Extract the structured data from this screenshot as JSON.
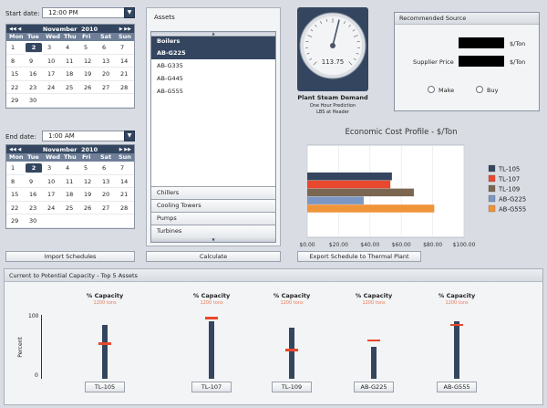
{
  "start": {
    "label": "Start date:",
    "time": "12:00 PM",
    "month": "November",
    "year": "2010",
    "days_header": [
      "Mon",
      "Tue",
      "Wed",
      "Thu",
      "Fri",
      "Sat",
      "Sun"
    ],
    "weeks": [
      [
        "1",
        "2",
        "3",
        "4",
        "5",
        "6",
        "7"
      ],
      [
        "8",
        "9",
        "10",
        "11",
        "12",
        "13",
        "14"
      ],
      [
        "15",
        "16",
        "17",
        "18",
        "19",
        "20",
        "21"
      ],
      [
        "22",
        "23",
        "24",
        "25",
        "26",
        "27",
        "28"
      ],
      [
        "29",
        "30",
        "",
        "",
        "",
        "",
        ""
      ]
    ],
    "selected": "2"
  },
  "end": {
    "label": "End date:",
    "time": "1:00 AM",
    "month": "November",
    "year": "2010",
    "days_header": [
      "Mon",
      "Tue",
      "Wed",
      "Thu",
      "Fri",
      "Sat",
      "Sun"
    ],
    "weeks": [
      [
        "1",
        "2",
        "3",
        "4",
        "5",
        "6",
        "7"
      ],
      [
        "8",
        "9",
        "10",
        "11",
        "12",
        "13",
        "14"
      ],
      [
        "15",
        "16",
        "17",
        "18",
        "19",
        "20",
        "21"
      ],
      [
        "22",
        "23",
        "24",
        "25",
        "26",
        "27",
        "28"
      ],
      [
        "29",
        "30",
        "",
        "",
        "",
        "",
        ""
      ]
    ],
    "selected": "2"
  },
  "import_button": "Import Schedules",
  "assets": {
    "title": "Assets",
    "group": "Boilers",
    "items": [
      "AB-G225",
      "AB-G335",
      "AB-G445",
      "AB-G555"
    ],
    "selected": "AB-G225",
    "collapsed_groups": [
      "Chillers",
      "Cooling Towers",
      "Pumps",
      "Turbines"
    ]
  },
  "calculate_button": "Calculate",
  "gauge": {
    "value": "113.75",
    "title": "Plant Steam Demand",
    "sub1": "One Hour Prediction",
    "sub2": "LBS at Header"
  },
  "recommended": {
    "title": "Recommended Source",
    "unit1": "$/Ton",
    "supplier_label": "Supplier Price",
    "unit2": "$/Ton",
    "make_label": "Make",
    "buy_label": "Buy"
  },
  "cost_chart": {
    "title": "Economic Cost Profile - $/Ton",
    "ticks": [
      "$0.00",
      "$20.00",
      "$40.00",
      "$60.00",
      "$80.00",
      "$100.00"
    ],
    "chart_data": {
      "type": "bar",
      "orientation": "horizontal",
      "title": "Economic Cost Profile - $/Ton",
      "xlim": [
        0,
        100
      ],
      "series": [
        {
          "name": "TL-105",
          "value": 54,
          "color": "#34465f"
        },
        {
          "name": "TL-107",
          "value": 53,
          "color": "#e8482e"
        },
        {
          "name": "TL-109",
          "value": 68,
          "color": "#7b6652"
        },
        {
          "name": "AB-G225",
          "value": 36,
          "color": "#7b97c2"
        },
        {
          "name": "AB-G555",
          "value": 81,
          "color": "#f0943a"
        }
      ]
    }
  },
  "export_button": "Export Schedule to Thermal Plant",
  "capacity": {
    "title": "Current to Potential Capacity - Top 5 Assets",
    "y_label": "Percent",
    "y_top": "100",
    "y_bottom": "0",
    "col_label": "% Capacity",
    "col_sub": "1200 tons",
    "chart_data": {
      "type": "bar",
      "ylim": [
        0,
        100
      ],
      "categories": [
        "TL-105",
        "TL-107",
        "TL-109",
        "AB-G225",
        "AB-G555"
      ],
      "current": [
        85,
        90,
        80,
        50,
        90
      ],
      "potential": [
        57,
        97,
        47,
        62,
        86
      ]
    }
  }
}
